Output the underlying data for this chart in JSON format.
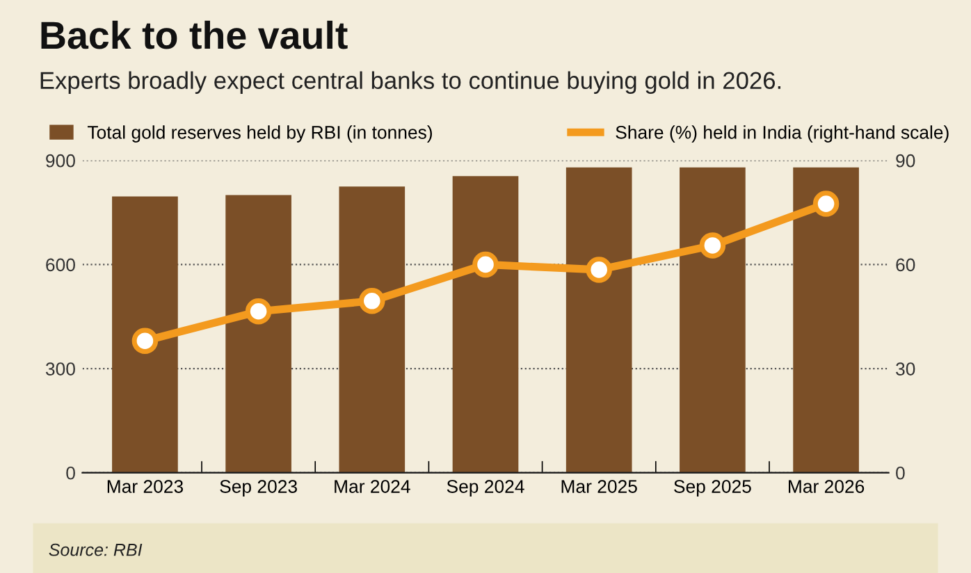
{
  "chart_data": {
    "type": "bar",
    "title": "Back to the vault",
    "subtitle": "Experts broadly expect central banks to continue buying gold in 2026.",
    "categories": [
      "Mar 2023",
      "Sep 2023",
      "Mar 2024",
      "Sep 2024",
      "Mar 2025",
      "Sep 2025",
      "Mar 2026"
    ],
    "series": [
      {
        "name": "Total gold reserves held by RBI (in tonnes)",
        "color": "#7b4f27",
        "values": [
          796,
          800,
          825,
          855,
          880,
          880,
          880
        ]
      },
      {
        "name": "Share (%) held in India (right-hand scale)",
        "type": "line",
        "axis": "y2",
        "color": "#f39a1e",
        "marker": "circle",
        "values": [
          38,
          46.5,
          49.5,
          60,
          58.5,
          65.5,
          77.5
        ]
      }
    ],
    "ylim": [
      0,
      900
    ],
    "yticks": [
      0,
      300,
      600,
      900
    ],
    "y2lim": [
      0,
      90
    ],
    "y2ticks": [
      0,
      30,
      60,
      90
    ],
    "grid": "y",
    "legend": "top",
    "annotations": [
      "Source: RBI"
    ]
  }
}
